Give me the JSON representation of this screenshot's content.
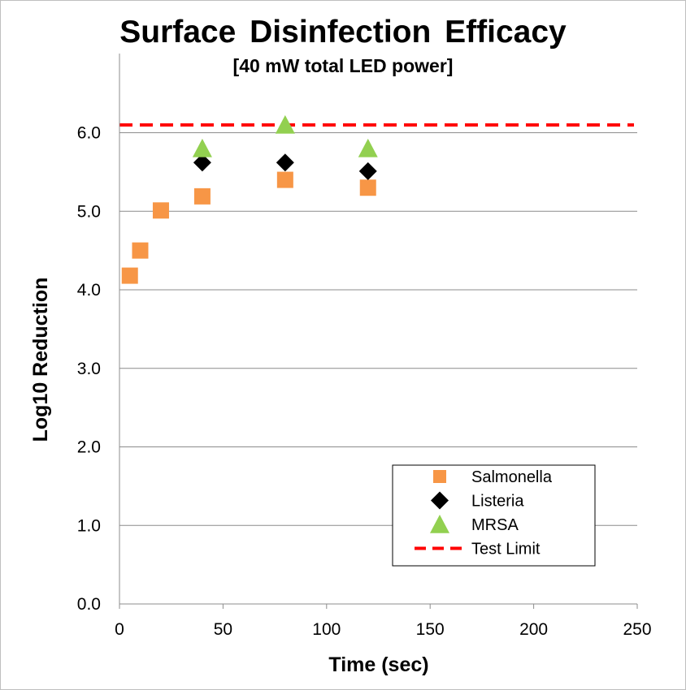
{
  "chart_data": {
    "type": "scatter",
    "title": "Surface Disinfection Efficacy",
    "subtitle": "[40 mW total LED power]",
    "xlabel": "Time (sec)",
    "ylabel": "Log10 Reduction",
    "xlim": [
      0,
      250
    ],
    "ylim": [
      0,
      6.5
    ],
    "xticks": [
      0,
      50,
      100,
      150,
      200,
      250
    ],
    "yticks": [
      "0.0",
      "1.0",
      "2.0",
      "3.0",
      "4.0",
      "5.0",
      "6.0"
    ],
    "grid": "horizontal",
    "legend_position": "bottom-right",
    "series": [
      {
        "name": "Salmonella",
        "marker": "square",
        "color": "#F79646",
        "x": [
          5,
          10,
          20,
          40,
          80,
          120
        ],
        "y": [
          4.18,
          4.5,
          5.01,
          5.19,
          5.4,
          5.3
        ]
      },
      {
        "name": "Listeria",
        "marker": "diamond",
        "color": "#000000",
        "x": [
          40,
          80,
          120
        ],
        "y": [
          5.62,
          5.62,
          5.51
        ]
      },
      {
        "name": "MRSA",
        "marker": "triangle",
        "color": "#92D050",
        "x": [
          40,
          80,
          120
        ],
        "y": [
          5.8,
          6.1,
          5.8
        ]
      }
    ],
    "reference_lines": [
      {
        "name": "Test Limit",
        "y": 6.1,
        "style": "dashed",
        "color": "#FF0000"
      }
    ]
  }
}
